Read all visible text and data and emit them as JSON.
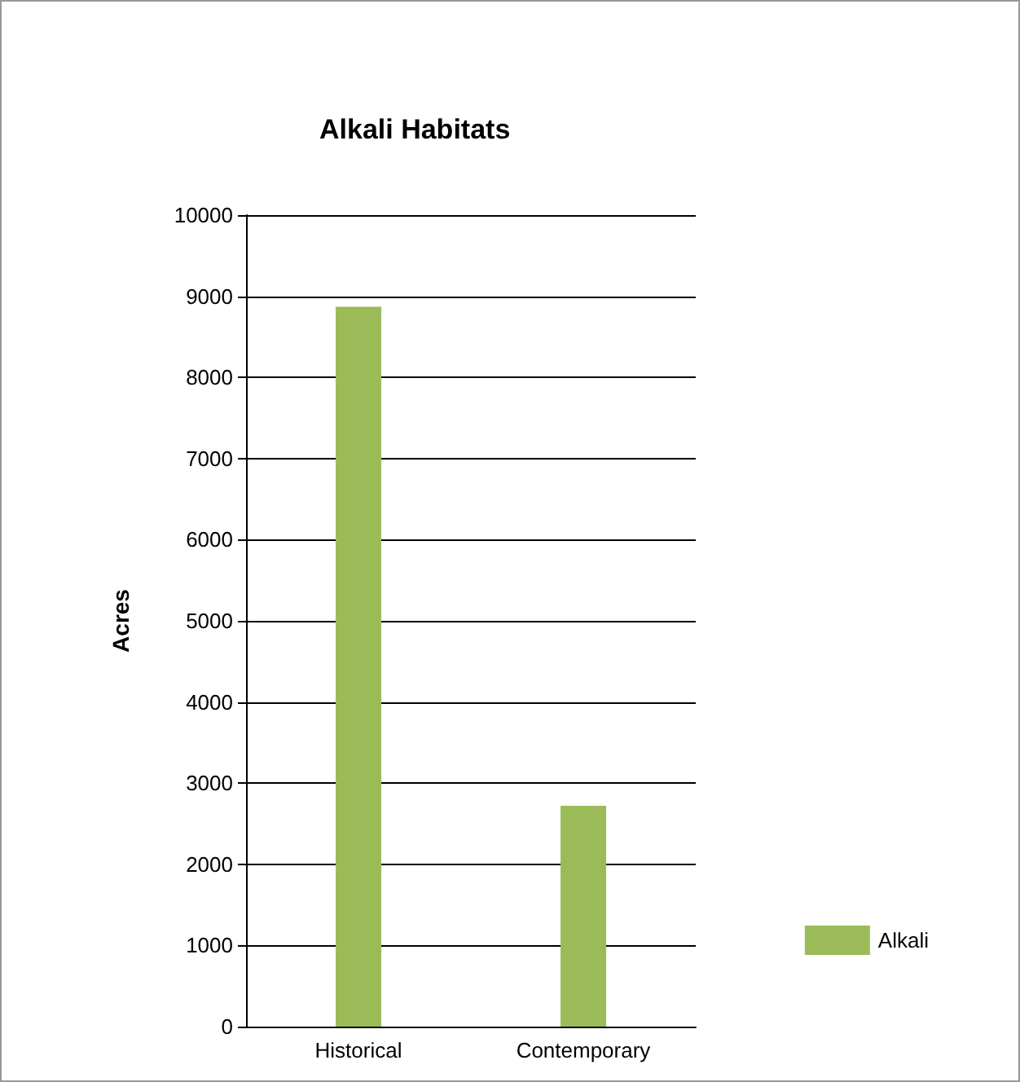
{
  "chart_data": {
    "type": "bar",
    "title": "Alkali Habitats",
    "ylabel": "Acres",
    "categories": [
      "Historical",
      "Contemporary"
    ],
    "series": [
      {
        "name": "Alkali",
        "color": "#9bbb59",
        "values": [
          8870,
          2720
        ]
      }
    ],
    "ylim": [
      0,
      10000
    ],
    "yticks": [
      0,
      1000,
      2000,
      3000,
      4000,
      5000,
      6000,
      7000,
      8000,
      9000,
      10000
    ],
    "grid": "y",
    "legend": "bottom right"
  }
}
